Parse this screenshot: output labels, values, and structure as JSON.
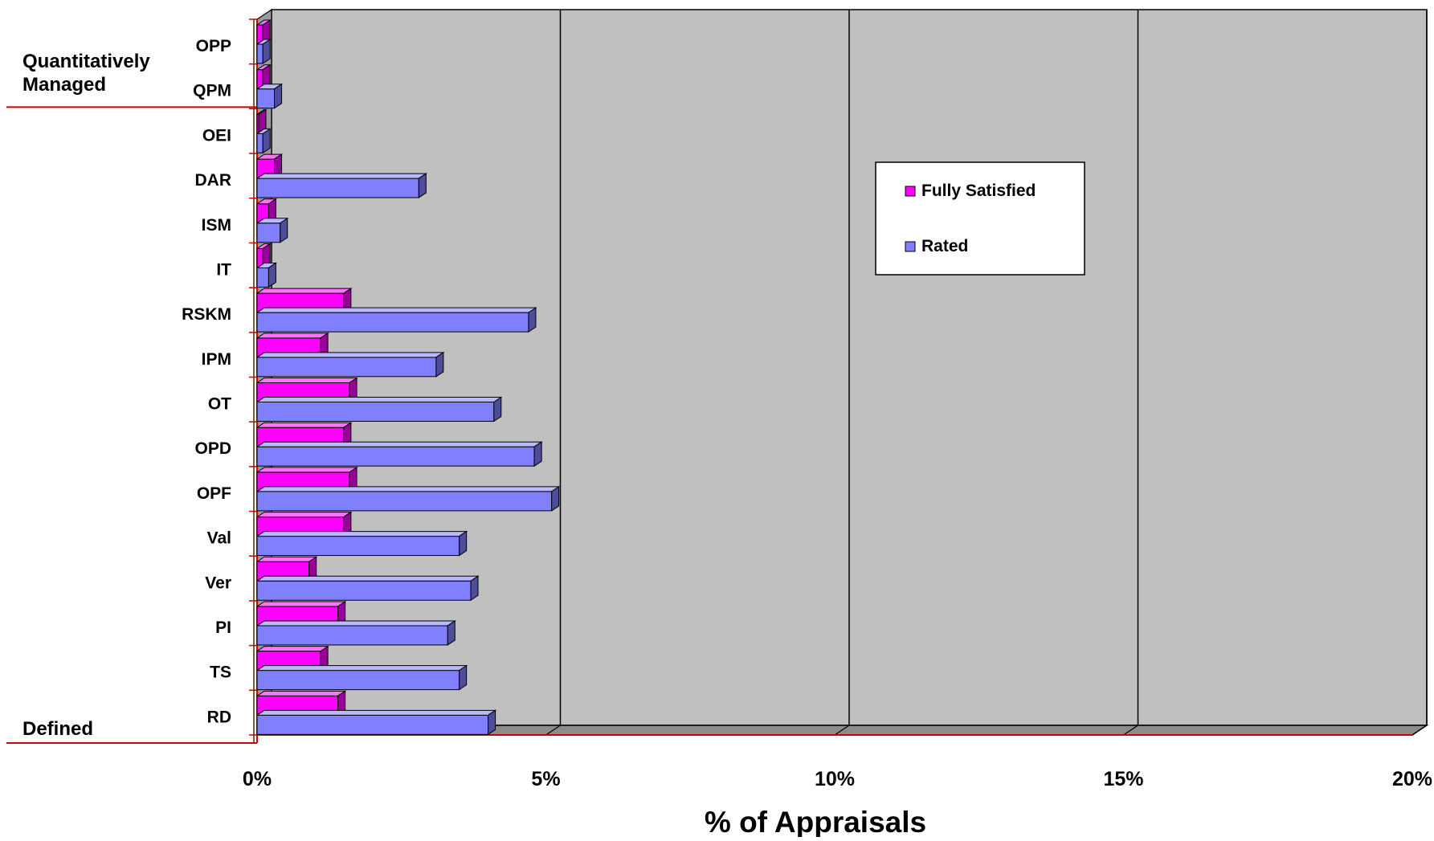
{
  "chart_data": {
    "type": "bar",
    "orientation": "horizontal",
    "style": "3d",
    "categories": [
      "OPP",
      "QPM",
      "OEI",
      "DAR",
      "ISM",
      "IT",
      "RSKM",
      "IPM",
      "OT",
      "OPD",
      "OPF",
      "Val",
      "Ver",
      "PI",
      "TS",
      "RD"
    ],
    "series": [
      {
        "name": "Fully Satisfied",
        "color": "#ff00ff",
        "values": [
          0.1,
          0.1,
          0.0,
          0.3,
          0.2,
          0.1,
          1.5,
          1.1,
          1.6,
          1.5,
          1.6,
          1.5,
          0.9,
          1.4,
          1.1,
          1.4
        ]
      },
      {
        "name": "Rated",
        "color": "#8080ff",
        "values": [
          0.1,
          0.3,
          0.1,
          2.8,
          0.4,
          0.2,
          4.7,
          3.1,
          4.1,
          4.8,
          5.1,
          3.5,
          3.7,
          3.3,
          3.5,
          4.0
        ]
      }
    ],
    "xlim": [
      0,
      20
    ],
    "xticks": [
      "0%",
      "5%",
      "10%",
      "15%",
      "20%"
    ],
    "xlabel": "% of Appraisals",
    "ylabel": "",
    "group_labels": [
      {
        "text": "Quantitatively Managed",
        "lines": [
          "Quantitatively",
          "Managed"
        ]
      },
      {
        "text": "Defined",
        "lines": [
          "Defined"
        ]
      }
    ],
    "legend": {
      "position": "top-right",
      "entries": [
        "Fully Satisfied",
        "Rated"
      ]
    },
    "grid": true,
    "colors": {
      "plot_background": "#c0c0c0",
      "divider": "#cc0000"
    }
  }
}
